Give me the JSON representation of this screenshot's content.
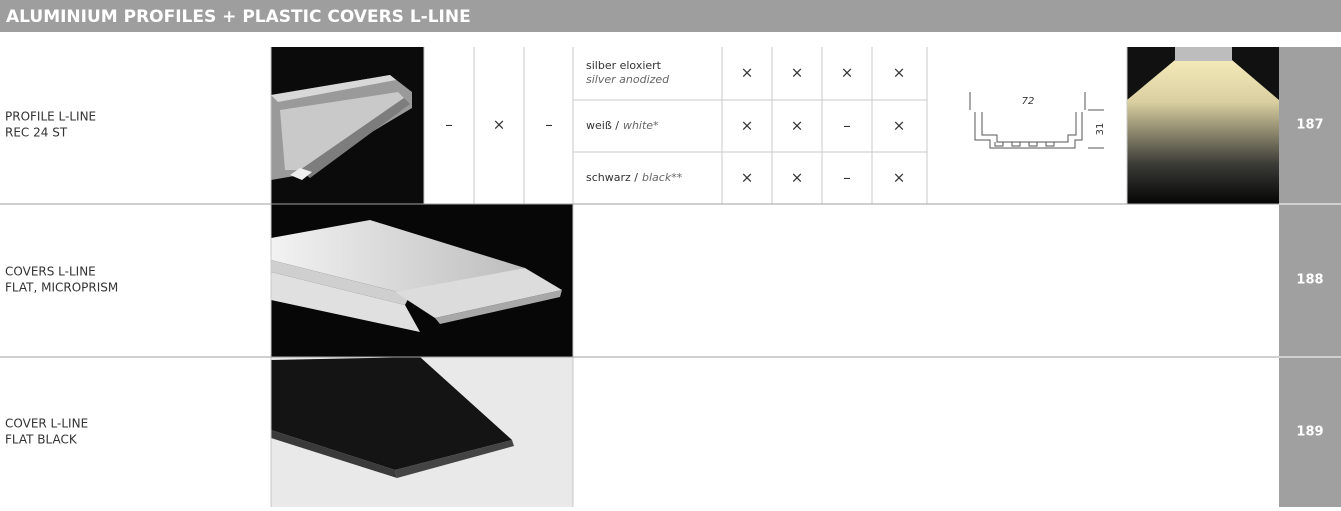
{
  "header": {
    "title": "ALUMINIUM PROFILES + PLASTIC COVERS L-LINE"
  },
  "rows": [
    {
      "name": [
        "PROFILE L-LINE",
        "REC 24 ST"
      ],
      "page": "187",
      "marks": [
        "–",
        "×",
        "–"
      ],
      "finishes": [
        {
          "de": "silber eloxiert",
          "en": "silver anodized",
          "marks": [
            "×",
            "×",
            "×",
            "×"
          ]
        },
        {
          "de": "weiß /",
          "en": "white*",
          "marks": [
            "×",
            "×",
            "–",
            "×"
          ]
        },
        {
          "de": "schwarz /",
          "en": "black**",
          "marks": [
            "×",
            "×",
            "–",
            "×"
          ]
        }
      ],
      "drawing": {
        "width": "72",
        "height": "31"
      }
    },
    {
      "name": [
        "COVERS L-LINE",
        "FLAT, MICROPRISM"
      ],
      "page": "188"
    },
    {
      "name": [
        "COVER L-LINE",
        "FLAT BLACK"
      ],
      "page": "189"
    }
  ]
}
